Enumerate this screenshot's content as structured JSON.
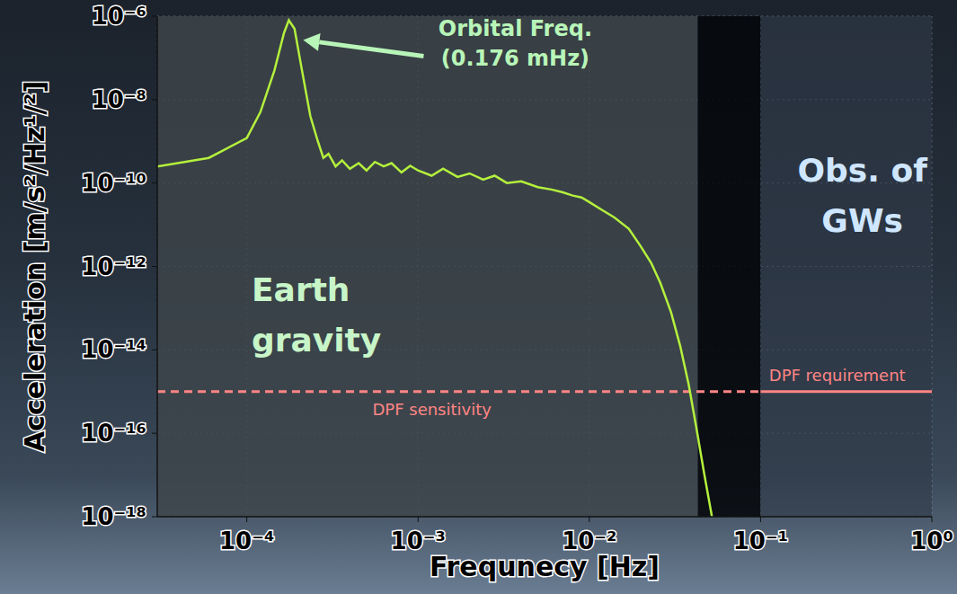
{
  "chart_data": {
    "type": "line",
    "x_label": "Frequnecy [Hz]",
    "y_label": "Acceleration [m/s²/Hz¹/²]",
    "log": true,
    "grid": true,
    "color": "#b4f03c",
    "x": [
      3e-05,
      6e-05,
      0.0001,
      0.00012,
      0.000145,
      0.000165,
      0.000176,
      0.00019,
      0.00021,
      0.000235,
      0.00026,
      0.00028,
      0.0003,
      0.00033,
      0.00036,
      0.0004,
      0.00045,
      0.0005,
      0.00056,
      0.00063,
      0.0007,
      0.0008,
      0.0009,
      0.001,
      0.0012,
      0.0014,
      0.0017,
      0.002,
      0.0024,
      0.0028,
      0.0033,
      0.004,
      0.005,
      0.006,
      0.007,
      0.008,
      0.009,
      0.01,
      0.012,
      0.014,
      0.017,
      0.02,
      0.023,
      0.026,
      0.03,
      0.034,
      0.038,
      0.042,
      0.047,
      0.052
    ],
    "values": [
      2.5e-10,
      4e-10,
      1.2e-09,
      5e-09,
      5e-08,
      4e-07,
      8e-07,
      5e-07,
      5e-08,
      4e-09,
      1e-09,
      4e-10,
      5e-10,
      2.5e-10,
      3.5e-10,
      2.2e-10,
      3e-10,
      2e-10,
      3.2e-10,
      2.5e-10,
      3e-10,
      1.8e-10,
      2.6e-10,
      2e-10,
      1.5e-10,
      2.2e-10,
      1.4e-10,
      1.7e-10,
      1.2e-10,
      1.5e-10,
      1e-10,
      1.1e-10,
      8e-11,
      7e-11,
      6e-11,
      5e-11,
      4.5e-11,
      3.5e-11,
      2.2e-11,
      1.5e-11,
      8e-12,
      3e-12,
      1.2e-12,
      4e-13,
      8e-14,
      1.2e-14,
      1.5e-15,
      1.5e-16,
      1e-17,
      1e-18
    ],
    "xlim": [
      3e-05,
      1
    ],
    "ylim": [
      1e-18,
      1e-06
    ],
    "xticks": [
      {
        "value": 0.0001,
        "label": "10⁻⁴"
      },
      {
        "value": 0.001,
        "label": "10⁻³"
      },
      {
        "value": 0.01,
        "label": "10⁻²"
      },
      {
        "value": 0.1,
        "label": "10⁻¹"
      },
      {
        "value": 1,
        "label": "10⁰"
      }
    ],
    "yticks": [
      {
        "value": 1e-18,
        "label": "10⁻¹⁸"
      },
      {
        "value": 1e-16,
        "label": "10⁻¹⁶"
      },
      {
        "value": 1e-14,
        "label": "10⁻¹⁴"
      },
      {
        "value": 1e-12,
        "label": "10⁻¹²"
      },
      {
        "value": 1e-10,
        "label": "10⁻¹⁰"
      },
      {
        "value": 1e-08,
        "label": "10⁻⁸"
      },
      {
        "value": 1e-06,
        "label": "10⁻⁶"
      }
    ],
    "annotations": [
      {
        "text": [
          "Orbital Freq.",
          "(0.176 mHz)"
        ],
        "color": "#b8f5b8"
      }
    ],
    "regions": [
      {
        "label": "Earth gravity",
        "x": [
          3e-05,
          0.043
        ],
        "color": "#c8f5c8"
      },
      {
        "x": [
          0.043,
          0.1
        ],
        "color": "#05070a"
      },
      {
        "label": "Obs. of GWs",
        "x": [
          0.1,
          1
        ],
        "color": "#cfe6ff"
      }
    ],
    "reference_lines": [
      {
        "label": "DPF sensitivity",
        "y": 1e-15,
        "x": [
          3e-05,
          0.1
        ],
        "line_style": "dashed",
        "color": "#ff8585"
      },
      {
        "label": "DPF requirement",
        "y": 1e-15,
        "x": [
          0.1,
          1
        ],
        "line_style": "solid",
        "color": "#ff8585"
      }
    ]
  }
}
